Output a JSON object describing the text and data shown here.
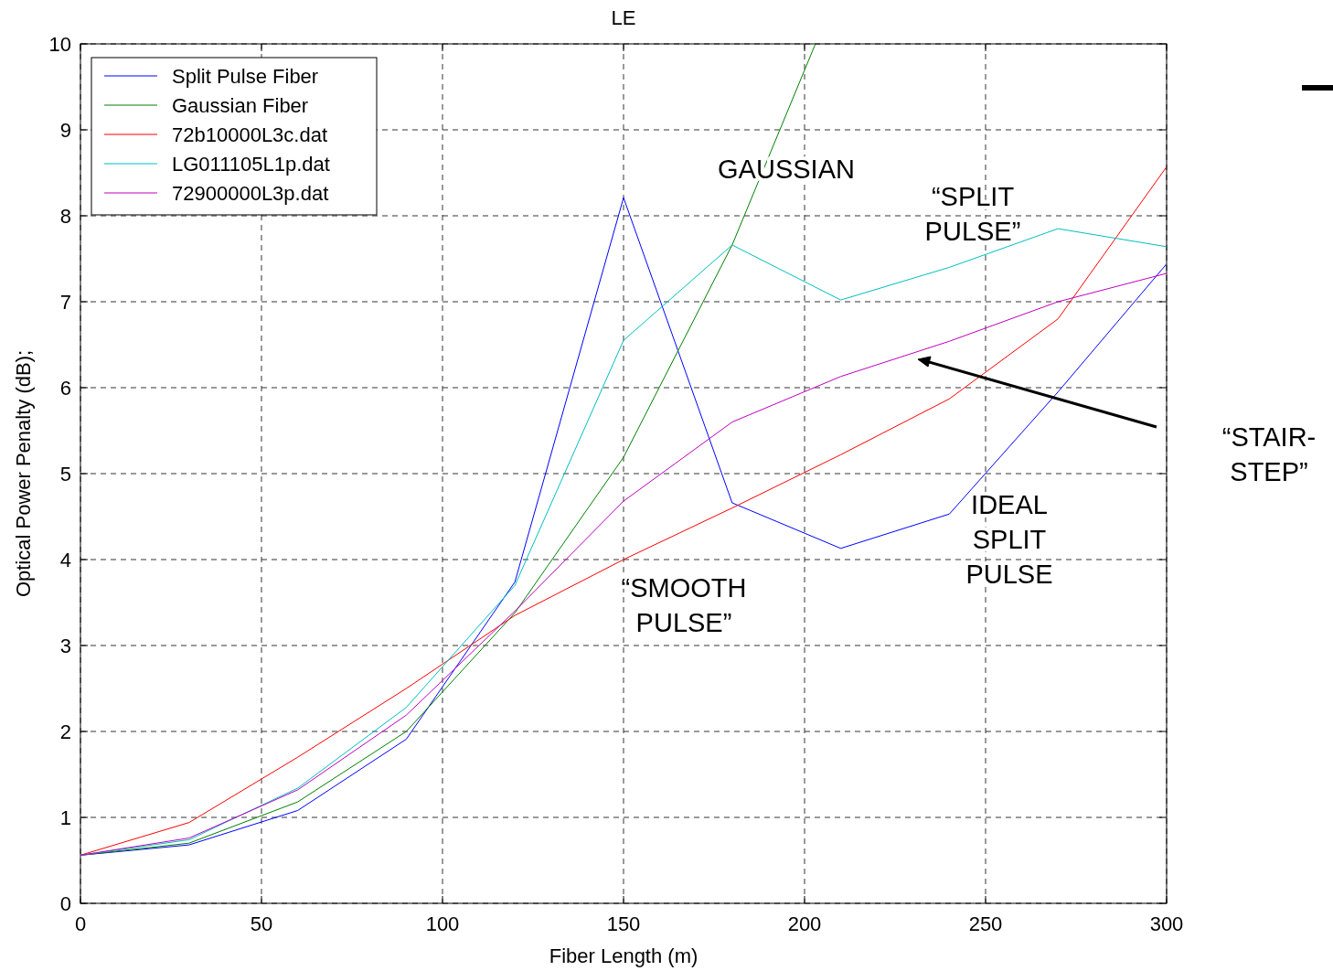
{
  "chart_data": {
    "type": "line",
    "title": "LE",
    "xlabel": "Fiber Length (m)",
    "ylabel": "Optical Power Penalty (dB);",
    "x": [
      0,
      30,
      60,
      90,
      120,
      150,
      180,
      210,
      240,
      270,
      300
    ],
    "xlim": [
      0,
      300
    ],
    "xticks": [
      0,
      50,
      100,
      150,
      200,
      250,
      300
    ],
    "ylim": [
      0,
      10
    ],
    "yticks": [
      0,
      1,
      2,
      3,
      4,
      5,
      6,
      7,
      8,
      9,
      10
    ],
    "grid": true,
    "legend": "top left",
    "marker": "none",
    "line_style": "solid",
    "series": [
      {
        "name": "Split Pulse Fiber",
        "color": "#0000ff",
        "values": [
          0.56,
          0.68,
          1.08,
          1.91,
          3.74,
          8.21,
          4.66,
          4.13,
          4.53,
          5.95,
          7.44
        ]
      },
      {
        "name": "Gaussian Fiber",
        "color": "#008000",
        "x": [
          0,
          30,
          60,
          90,
          120,
          150,
          180,
          203
        ],
        "values": [
          0.56,
          0.7,
          1.18,
          2.0,
          3.38,
          5.19,
          7.66,
          10
        ]
      },
      {
        "name": "72b10000L3c.dat",
        "color": "#ff0000",
        "values": [
          0.56,
          0.94,
          1.7,
          2.5,
          3.35,
          4.0,
          4.6,
          5.22,
          5.87,
          6.8,
          8.57
        ]
      },
      {
        "name": "LG011105L1p.dat",
        "color": "#00bfbf",
        "values": [
          0.56,
          0.74,
          1.34,
          2.28,
          3.7,
          6.55,
          7.66,
          7.02,
          7.4,
          7.85,
          7.64
        ]
      },
      {
        "name": "72900000L3p.dat",
        "color": "#bf00bf",
        "values": [
          0.56,
          0.76,
          1.32,
          2.19,
          3.4,
          4.68,
          5.6,
          6.13,
          6.54,
          7.0,
          7.33
        ]
      }
    ],
    "annotations": [
      "GAUSSIAN",
      "“SPLIT\nPULSE”",
      "“SMOOTH\nPULSE”",
      "IDEAL\nSPLIT\nPULSE",
      "“STAIR-\nSTEP”"
    ]
  }
}
